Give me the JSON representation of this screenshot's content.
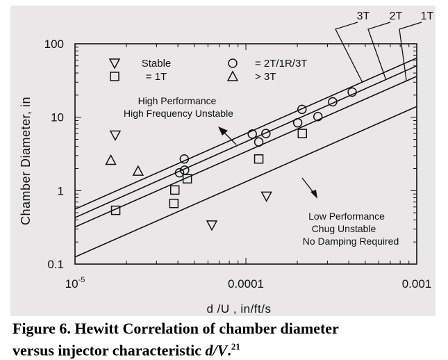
{
  "chart_data": {
    "type": "scatter",
    "x_scale": "log",
    "y_scale": "log",
    "xlim": [
      1e-05,
      0.001
    ],
    "ylim": [
      0.1,
      100
    ],
    "x_ticks": [
      {
        "value": 1e-05,
        "label": "10",
        "sup": "-5"
      },
      {
        "value": 0.0001,
        "label": "0.0001",
        "sup": ""
      },
      {
        "value": 0.001,
        "label": "0.001",
        "sup": ""
      }
    ],
    "y_ticks": [
      {
        "value": 100,
        "label": "100"
      },
      {
        "value": 10,
        "label": "10"
      },
      {
        "value": 1,
        "label": "1"
      },
      {
        "value": 0.1,
        "label": "0.1"
      }
    ],
    "ylabel": "Chamber Diameter, in",
    "xlabel": "d /U , in/ft/s",
    "legend": [
      {
        "marker": "triangle-down",
        "label": "Stable"
      },
      {
        "marker": "circle",
        "label": "= 2T/1R/3T"
      },
      {
        "marker": "square",
        "label": "= 1T"
      },
      {
        "marker": "triangle-up",
        "label": "> 3T"
      }
    ],
    "lines": [
      {
        "name": "3T",
        "x": [
          1e-05,
          0.001
        ],
        "y": [
          0.56,
          64
        ]
      },
      {
        "name": "2T",
        "x": [
          1e-05,
          0.001
        ],
        "y": [
          0.43,
          50
        ]
      },
      {
        "name": "1T",
        "x": [
          1e-05,
          0.001
        ],
        "y": [
          0.32,
          36
        ]
      },
      {
        "name": "",
        "x": [
          1e-05,
          0.001
        ],
        "y": [
          0.125,
          14
        ]
      }
    ],
    "series": [
      {
        "name": "Stable",
        "marker": "triangle-down",
        "x": [
          1.72e-05,
          6.32e-05,
          0.000132
        ],
        "y": [
          5.7,
          0.34,
          0.84
        ]
      },
      {
        "name": "= 2T/1R/3T",
        "marker": "circle",
        "x": [
          4.09e-05,
          4.36e-05,
          4.38e-05,
          0.000109,
          0.000119,
          0.000131,
          0.000201,
          0.000213,
          0.000264,
          0.000322,
          0.000419
        ],
        "y": [
          1.75,
          2.7,
          1.9,
          5.9,
          4.6,
          6.0,
          8.4,
          12.8,
          10.2,
          16.2,
          22.0
        ]
      },
      {
        "name": "= 1T",
        "marker": "square",
        "x": [
          1.73e-05,
          3.79e-05,
          3.84e-05,
          4.54e-05,
          0.000119,
          0.000214
        ],
        "y": [
          0.54,
          0.67,
          1.02,
          1.45,
          2.7,
          6.0
        ]
      },
      {
        "name": "> 3T",
        "marker": "triangle-up",
        "x": [
          1.62e-05,
          2.34e-05
        ],
        "y": [
          2.6,
          1.85
        ]
      }
    ],
    "annotations": [
      {
        "lines": [
          "High Performance",
          "High Frequency Unstable"
        ]
      },
      {
        "lines": [
          "Low Performance",
          "Chug Unstable",
          "No Damping Required"
        ]
      }
    ]
  },
  "caption": {
    "line1": "Figure 6. Hewitt Correlation of chamber diameter",
    "line2_prefix": "versus injector characteristic ",
    "line2_italic": "d/V",
    "line2_suffix": ".",
    "line2_sup": "21"
  }
}
